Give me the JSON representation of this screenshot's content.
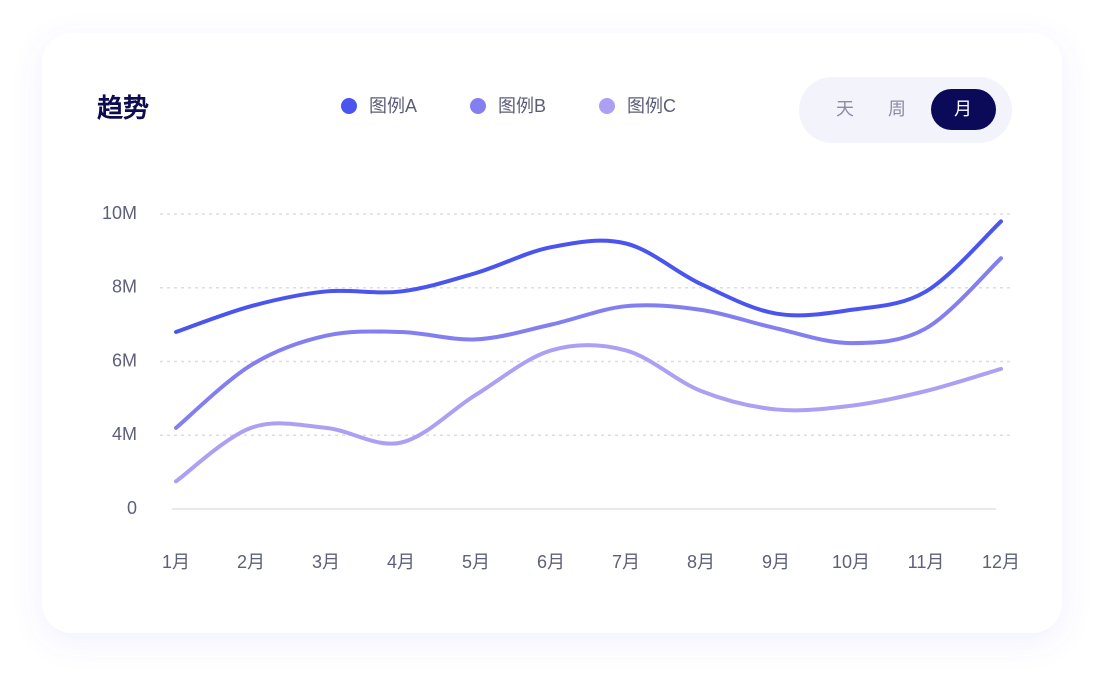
{
  "chart_data": {
    "type": "line",
    "title": "趋势",
    "periods": [
      "天",
      "周",
      "月"
    ],
    "categories": [
      "1月",
      "2月",
      "3月",
      "4月",
      "5月",
      "6月",
      "7月",
      "8月",
      "9月",
      "10月",
      "11月",
      "12月"
    ],
    "series": [
      {
        "name": "图例A",
        "color": "#4a55ef",
        "values": [
          6.8,
          7.5,
          7.9,
          7.9,
          8.4,
          9.1,
          9.2,
          8.1,
          7.3,
          7.4,
          7.9,
          9.8
        ]
      },
      {
        "name": "图例B",
        "color": "#847ff1",
        "values": [
          4.2,
          5.9,
          6.7,
          6.8,
          6.6,
          7.0,
          7.5,
          7.4,
          6.9,
          6.5,
          6.9,
          8.8
        ]
      },
      {
        "name": "图例C",
        "color": "#ad9ff3",
        "values": [
          1.5,
          4.2,
          4.2,
          3.6,
          5.1,
          6.3,
          6.3,
          5.2,
          4.7,
          4.8,
          5.2,
          5.8
        ]
      }
    ],
    "ylim": [
      0,
      10
    ],
    "yticks": [
      0,
      {
        "value": 4,
        "label": "4M"
      },
      {
        "value": 6,
        "label": "6M"
      },
      {
        "value": 8,
        "label": "8M"
      },
      {
        "value": 10,
        "label": "10M"
      }
    ],
    "grid": true
  }
}
